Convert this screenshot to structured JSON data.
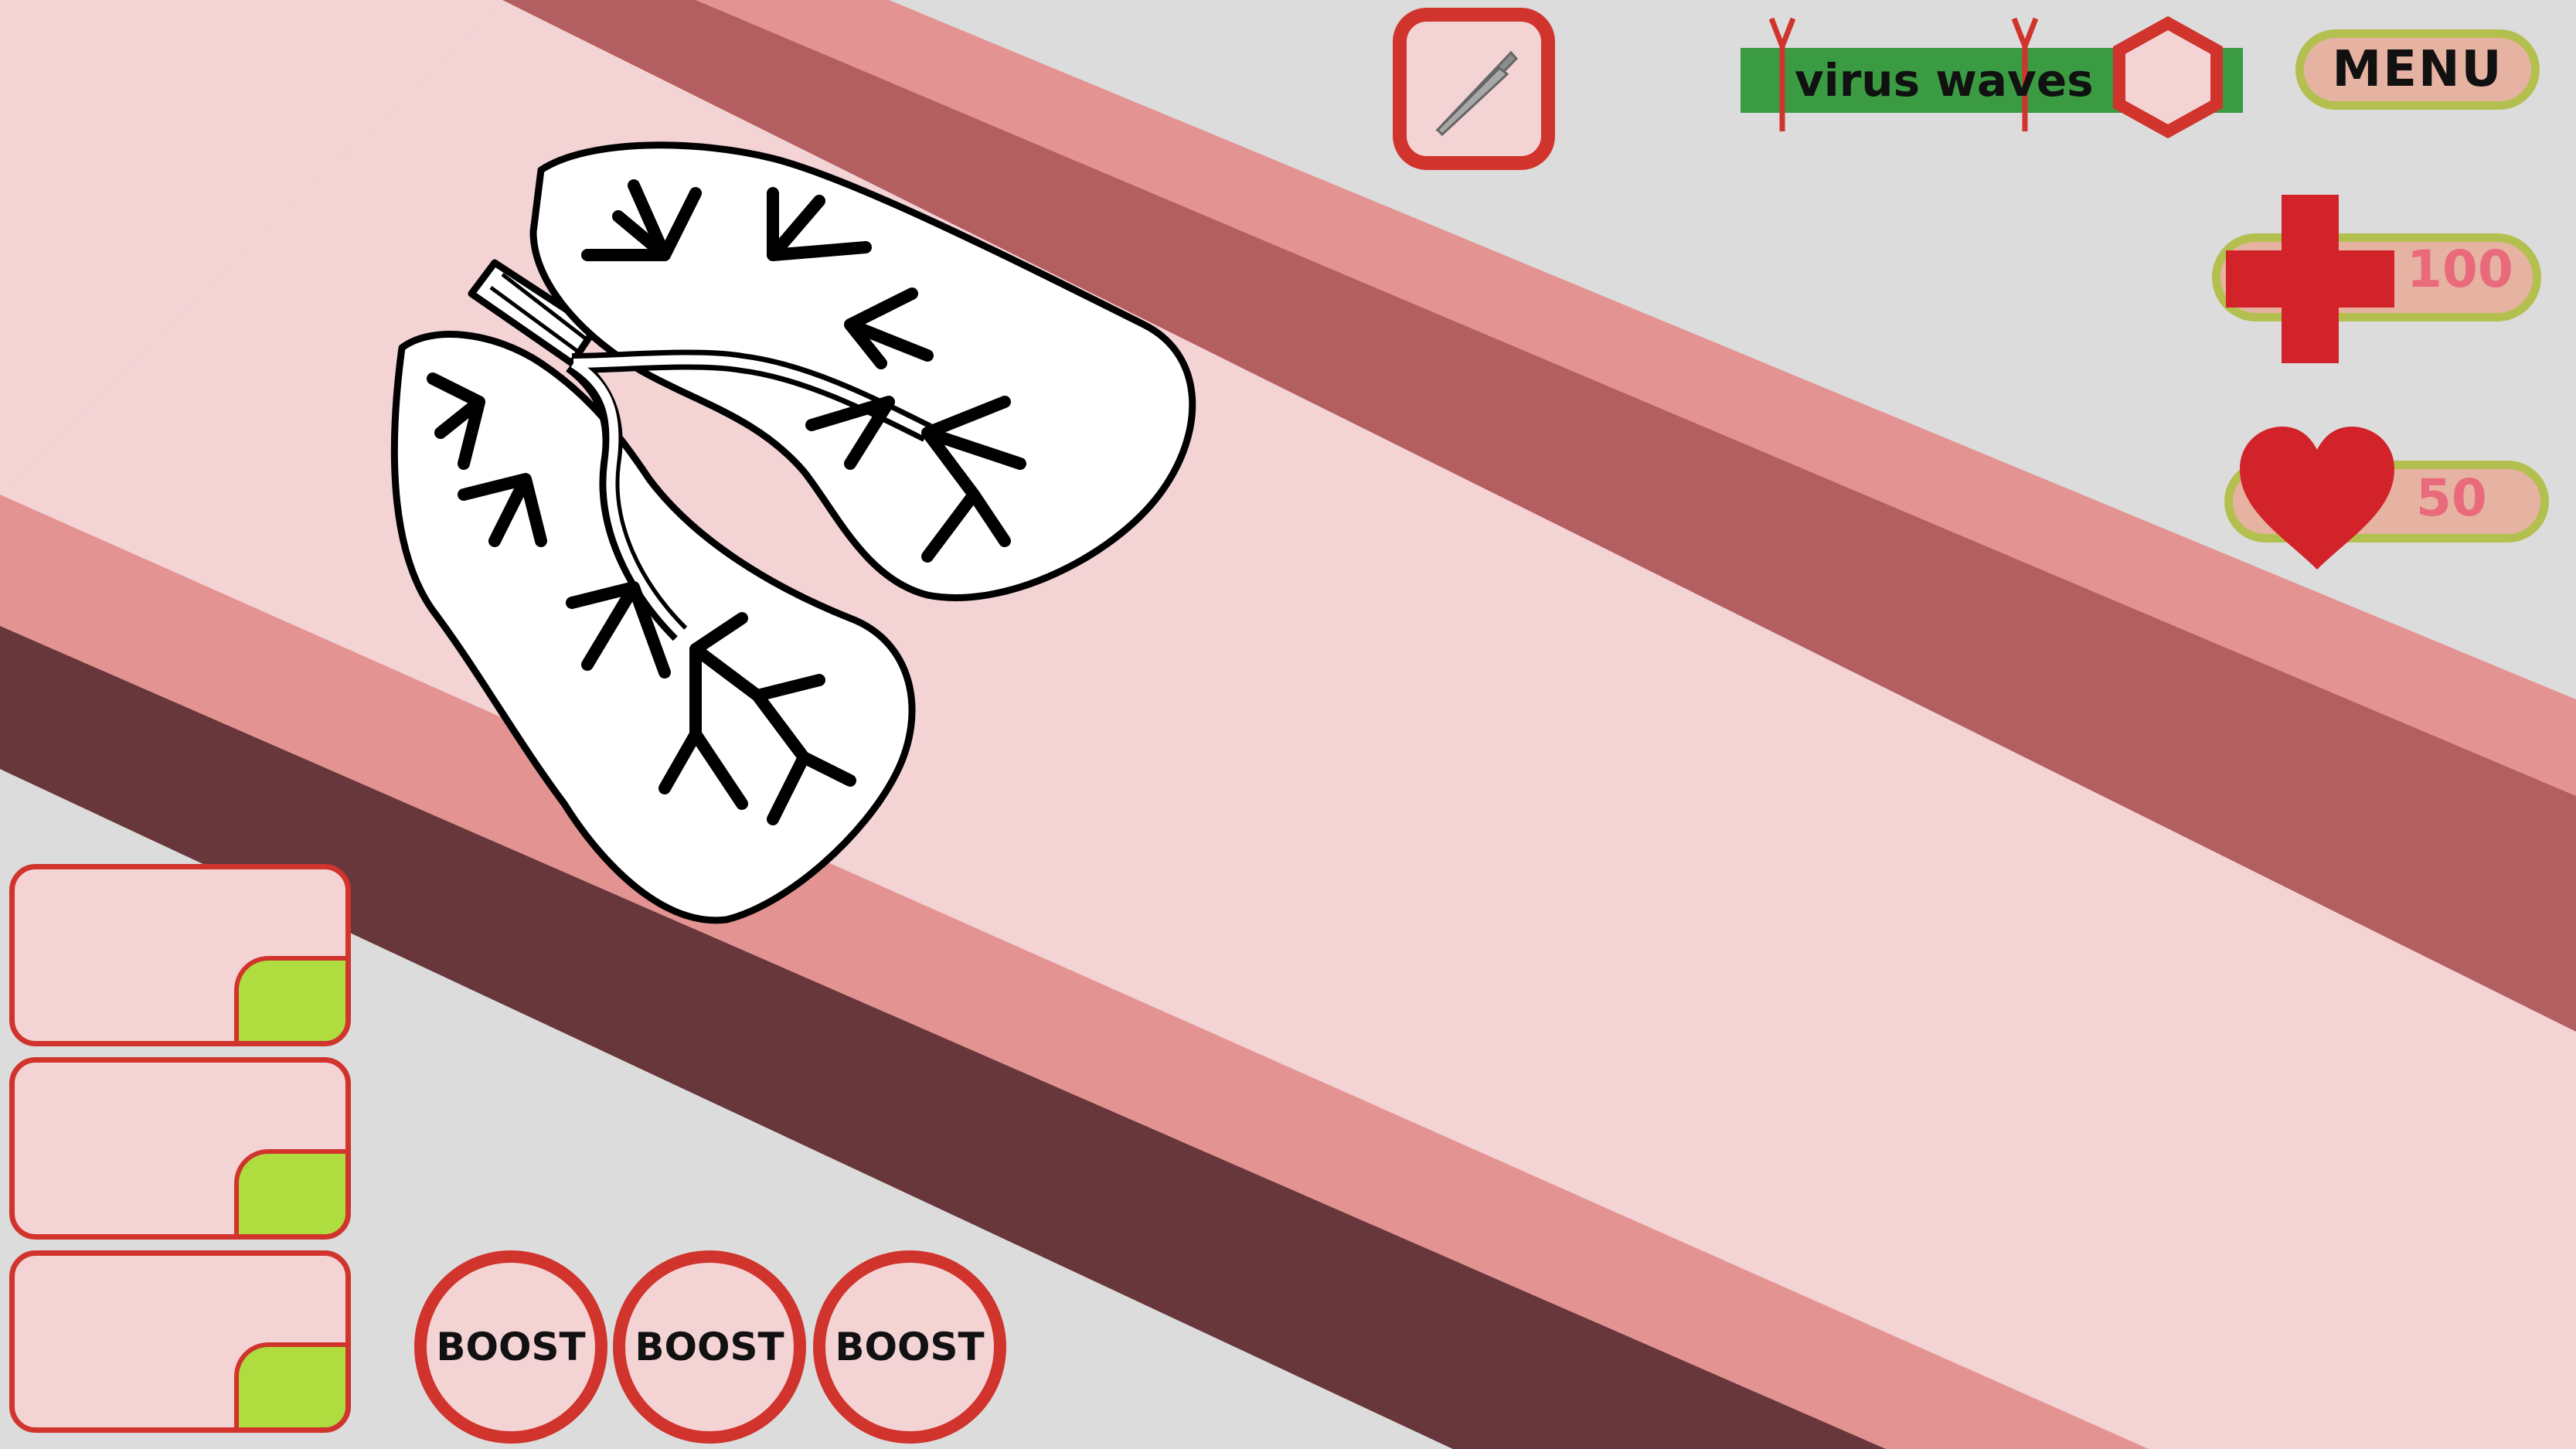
{
  "hud": {
    "wave_label": "virus waves",
    "menu_label": "MENU",
    "health_value": "100",
    "lives_value": "50",
    "tool_icon": "tweezers-icon"
  },
  "cards": [
    {
      "slot": 1
    },
    {
      "slot": 2
    },
    {
      "slot": 3
    }
  ],
  "boosts": [
    {
      "label": "BOOST"
    },
    {
      "label": "BOOST"
    },
    {
      "label": "BOOST"
    }
  ],
  "colors": {
    "accent_red": "#d0342c",
    "pill_green": "#b3c050",
    "wave_green": "#3a9b43",
    "card_green": "#afdc3f"
  }
}
